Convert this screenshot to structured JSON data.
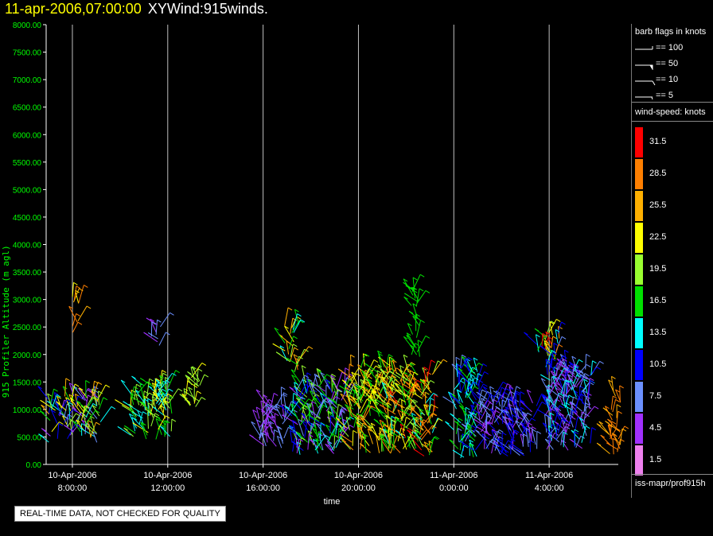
{
  "header": {
    "date": "11-apr-2006,07:00:00",
    "name": "XYWind:915winds."
  },
  "qc_note": "REAL-TIME DATA, NOT CHECKED FOR QUALITY",
  "legend": {
    "barb_title": "barb flags in knots",
    "barbs": [
      {
        "label": "== 100",
        "knots": 100
      },
      {
        "label": "== 50",
        "knots": 50
      },
      {
        "label": "== 10",
        "knots": 10
      },
      {
        "label": "== 5",
        "knots": 5
      }
    ],
    "speed_title": "wind-speed: knots",
    "swatches": [
      {
        "label": "31.5",
        "color": "#ff0000"
      },
      {
        "label": "28.5",
        "color": "#ff7f00"
      },
      {
        "label": "25.5",
        "color": "#ffb000"
      },
      {
        "label": "22.5",
        "color": "#ffff00"
      },
      {
        "label": "19.5",
        "color": "#9aff30"
      },
      {
        "label": "16.5",
        "color": "#00e000"
      },
      {
        "label": "13.5",
        "color": "#00ffff"
      },
      {
        "label": "10.5",
        "color": "#0000ff"
      },
      {
        "label": "7.5",
        "color": "#6a8fff"
      },
      {
        "label": "4.5",
        "color": "#a030ff"
      },
      {
        "label": "1.5",
        "color": "#ee80ee"
      }
    ],
    "path": "iss-mapr/prof915h"
  },
  "chart_data": {
    "type": "scatter",
    "title": "",
    "xlabel": "time",
    "ylabel": "915 Profiler Altitude (m agl)",
    "ylim": [
      0,
      8000
    ],
    "ytick_labels": [
      "0.00",
      "500.00",
      "1000.00",
      "1500.00",
      "2000.00",
      "2500.00",
      "3000.00",
      "3500.00",
      "4000.00",
      "4500.00",
      "5000.00",
      "5500.00",
      "6000.00",
      "6500.00",
      "7000.00",
      "7500.00",
      "8000.00"
    ],
    "xlim": [
      "2006-04-10T07:00",
      "2006-04-11T07:00"
    ],
    "xticks": [
      {
        "line1": "10-Apr-2006",
        "line2": "8:00:00",
        "hour": 1
      },
      {
        "line1": "10-Apr-2006",
        "line2": "12:00:00",
        "hour": 5
      },
      {
        "line1": "10-Apr-2006",
        "line2": "16:00:00",
        "hour": 9
      },
      {
        "line1": "10-Apr-2006",
        "line2": "20:00:00",
        "hour": 13
      },
      {
        "line1": "11-Apr-2006",
        "line2": "0:00:00",
        "hour": 17
      },
      {
        "line1": "11-Apr-2006",
        "line2": "4:00:00",
        "hour": 21
      }
    ],
    "grid": "vertical",
    "colors": {
      "axis": "#ffffff",
      "tick_labels": "#00ff00",
      "ylabel": "#00ff00",
      "grid": "#c0c0c0"
    },
    "color_key": "wind speed (knots)",
    "clusters": [
      {
        "t0": 0.0,
        "t1": 2.2,
        "z0": 400,
        "z1": 1250,
        "speed": [
          4,
          26
        ]
      },
      {
        "t0": 1.0,
        "t1": 1.3,
        "z0": 2400,
        "z1": 3050,
        "speed": [
          20,
          30
        ]
      },
      {
        "t0": 3.4,
        "t1": 5.2,
        "z0": 450,
        "z1": 1450,
        "speed": [
          12,
          24
        ]
      },
      {
        "t0": 4.3,
        "t1": 4.7,
        "z0": 2150,
        "z1": 2550,
        "speed": [
          4,
          9
        ]
      },
      {
        "t0": 5.7,
        "t1": 6.4,
        "z0": 1000,
        "z1": 1600,
        "speed": [
          18,
          22
        ]
      },
      {
        "t0": 8.8,
        "t1": 10.0,
        "z0": 300,
        "z1": 1100,
        "speed": [
          3,
          9
        ]
      },
      {
        "t0": 9.9,
        "t1": 10.5,
        "z0": 1700,
        "z1": 2550,
        "speed": [
          12,
          30
        ]
      },
      {
        "t0": 10.2,
        "t1": 12.5,
        "z0": 150,
        "z1": 1500,
        "speed": [
          3,
          20
        ]
      },
      {
        "t0": 12.5,
        "t1": 14.5,
        "z0": 200,
        "z1": 1800,
        "speed": [
          15,
          29
        ]
      },
      {
        "t0": 14.2,
        "t1": 16.2,
        "z0": 150,
        "z1": 1700,
        "speed": [
          14,
          31
        ]
      },
      {
        "t0": 15.2,
        "t1": 15.6,
        "z0": 1900,
        "z1": 3200,
        "speed": [
          16,
          18
        ]
      },
      {
        "t0": 17.0,
        "t1": 18.0,
        "z0": 100,
        "z1": 1800,
        "speed": [
          8,
          18
        ]
      },
      {
        "t0": 18.0,
        "t1": 20.5,
        "z0": 150,
        "z1": 1200,
        "speed": [
          3,
          12
        ]
      },
      {
        "t0": 20.5,
        "t1": 21.5,
        "z0": 1900,
        "z1": 2400,
        "speed": [
          8,
          31
        ]
      },
      {
        "t0": 20.8,
        "t1": 22.8,
        "z0": 200,
        "z1": 1800,
        "speed": [
          3,
          14
        ]
      },
      {
        "t0": 23.5,
        "t1": 24.0,
        "z0": 150,
        "z1": 1350,
        "speed": [
          25,
          30
        ]
      }
    ]
  }
}
